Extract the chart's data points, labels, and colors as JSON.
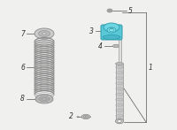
{
  "bg_color": "#f0f0ee",
  "highlight_color": "#5bc8d8",
  "highlight_edge": "#2a9aaa",
  "part_color": "#cccccc",
  "part_edge": "#888888",
  "line_color": "#555555",
  "label_color": "#333333",
  "spring_color": "#bbbbbb",
  "shock_color": "#c8c8c8",
  "shock_rod_color": "#b0b0b0",
  "fs": 5.5
}
